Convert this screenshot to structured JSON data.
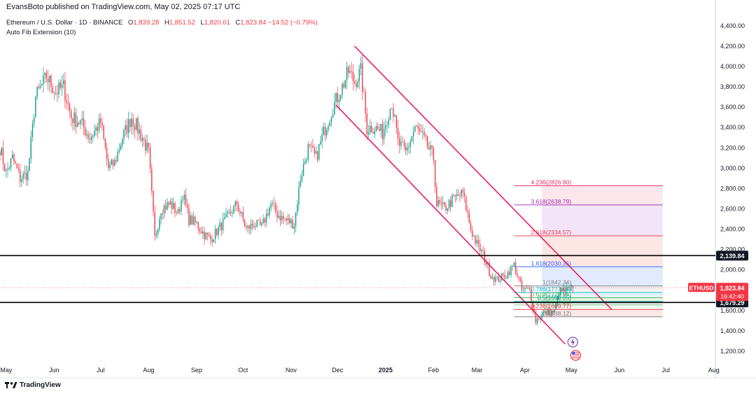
{
  "header": {
    "publish_line": "EvansBoto published on TradingView.com, May 02, 2025 07:17 UTC"
  },
  "legend": {
    "symbol": "Ethereum / U.S. Dollar · 1D · BINANCE",
    "open_label": "O",
    "open": "1,839.28",
    "high_label": "H",
    "high": "1,851.52",
    "low_label": "L",
    "low": "1,820.01",
    "close_label": "C",
    "close": "1,823.84",
    "change": "−14.52 (−0.79%)",
    "indicator": "Auto Fib Extension (10)"
  },
  "branding": {
    "logo_text": "TradingView",
    "logo_icon": "tradingview-logo-icon"
  },
  "colors": {
    "up": "#089981",
    "down": "#f23645",
    "channel": "#e91e63",
    "price_tag": "#f23645",
    "level_tag": "#131722"
  },
  "chart_data": {
    "type": "candlestick",
    "symbol": "ETHUSD",
    "timeframe": "1D",
    "y_ticks": [
      1200,
      1400,
      1600,
      1800,
      2000,
      2200,
      2400,
      2600,
      2800,
      3000,
      3200,
      3400,
      3600,
      3800,
      4000,
      4200,
      4400
    ],
    "y_tick_labels": [
      "1,200.00",
      "1,400.00",
      "1,600.00",
      "1,800.00",
      "2,000.00",
      "2,200.00",
      "2,400.00",
      "2,600.00",
      "2,800.00",
      "3,000.00",
      "3,200.00",
      "3,400.00",
      "3,600.00",
      "3,800.00",
      "4,000.00",
      "4,200.00",
      "4,400.00"
    ],
    "ylim": [
      1110,
      4530
    ],
    "x_labels": [
      {
        "label": "May",
        "date": "2024-05-01",
        "bold": false
      },
      {
        "label": "Jun",
        "date": "2024-06-01",
        "bold": false
      },
      {
        "label": "Jul",
        "date": "2024-07-01",
        "bold": false
      },
      {
        "label": "Aug",
        "date": "2024-08-01",
        "bold": false
      },
      {
        "label": "Sep",
        "date": "2024-09-01",
        "bold": false
      },
      {
        "label": "Oct",
        "date": "2024-10-01",
        "bold": false
      },
      {
        "label": "Nov",
        "date": "2024-11-01",
        "bold": false
      },
      {
        "label": "Dec",
        "date": "2024-12-01",
        "bold": false
      },
      {
        "label": "2025",
        "date": "2025-01-01",
        "bold": true
      },
      {
        "label": "Feb",
        "date": "2025-02-01",
        "bold": false
      },
      {
        "label": "Mar",
        "date": "2025-03-01",
        "bold": false
      },
      {
        "label": "Apr",
        "date": "2025-04-01",
        "bold": false
      },
      {
        "label": "May",
        "date": "2025-05-01",
        "bold": false
      },
      {
        "label": "Jun",
        "date": "2025-06-01",
        "bold": false
      },
      {
        "label": "Jul",
        "date": "2025-07-01",
        "bold": false
      },
      {
        "label": "Aug",
        "date": "2025-08-01",
        "bold": false
      }
    ],
    "xlim": [
      "2024-04-27",
      "2025-08-02"
    ],
    "price_path": [
      [
        "2024-04-27",
        3200
      ],
      [
        "2024-05-01",
        2950
      ],
      [
        "2024-05-05",
        3100
      ],
      [
        "2024-05-10",
        2900
      ],
      [
        "2024-05-15",
        2950
      ],
      [
        "2024-05-20",
        3700
      ],
      [
        "2024-05-27",
        3900
      ],
      [
        "2024-06-02",
        3750
      ],
      [
        "2024-06-07",
        3800
      ],
      [
        "2024-06-12",
        3500
      ],
      [
        "2024-06-18",
        3450
      ],
      [
        "2024-06-24",
        3300
      ],
      [
        "2024-07-01",
        3450
      ],
      [
        "2024-07-06",
        3000
      ],
      [
        "2024-07-10",
        3050
      ],
      [
        "2024-07-15",
        3300
      ],
      [
        "2024-07-21",
        3500
      ],
      [
        "2024-07-28",
        3300
      ],
      [
        "2024-08-01",
        3150
      ],
      [
        "2024-08-05",
        2300
      ],
      [
        "2024-08-09",
        2600
      ],
      [
        "2024-08-15",
        2650
      ],
      [
        "2024-08-20",
        2550
      ],
      [
        "2024-08-23",
        2750
      ],
      [
        "2024-08-27",
        2500
      ],
      [
        "2024-09-01",
        2450
      ],
      [
        "2024-09-06",
        2350
      ],
      [
        "2024-09-10",
        2300
      ],
      [
        "2024-09-15",
        2400
      ],
      [
        "2024-09-20",
        2500
      ],
      [
        "2024-09-27",
        2650
      ],
      [
        "2024-10-03",
        2400
      ],
      [
        "2024-10-08",
        2450
      ],
      [
        "2024-10-13",
        2420
      ],
      [
        "2024-10-19",
        2650
      ],
      [
        "2024-10-23",
        2550
      ],
      [
        "2024-10-27",
        2500
      ],
      [
        "2024-11-03",
        2450
      ],
      [
        "2024-11-07",
        2900
      ],
      [
        "2024-11-12",
        3200
      ],
      [
        "2024-11-17",
        3100
      ],
      [
        "2024-11-22",
        3350
      ],
      [
        "2024-11-28",
        3600
      ],
      [
        "2024-12-04",
        3800
      ],
      [
        "2024-12-08",
        3950
      ],
      [
        "2024-12-12",
        3850
      ],
      [
        "2024-12-16",
        3950
      ],
      [
        "2024-12-20",
        3400
      ],
      [
        "2024-12-25",
        3400
      ],
      [
        "2024-12-30",
        3350
      ],
      [
        "2025-01-05",
        3650
      ],
      [
        "2025-01-09",
        3250
      ],
      [
        "2025-01-14",
        3150
      ],
      [
        "2025-01-20",
        3400
      ],
      [
        "2025-01-25",
        3300
      ],
      [
        "2025-02-01",
        3100
      ],
      [
        "2025-02-03",
        2650
      ],
      [
        "2025-02-08",
        2600
      ],
      [
        "2025-02-14",
        2700
      ],
      [
        "2025-02-20",
        2750
      ],
      [
        "2025-02-25",
        2400
      ],
      [
        "2025-03-01",
        2250
      ],
      [
        "2025-03-05",
        2150
      ],
      [
        "2025-03-10",
        1950
      ],
      [
        "2025-03-14",
        1900
      ],
      [
        "2025-03-20",
        1950
      ],
      [
        "2025-03-25",
        2050
      ],
      [
        "2025-03-30",
        1800
      ],
      [
        "2025-04-04",
        1800
      ],
      [
        "2025-04-08",
        1500
      ],
      [
        "2025-04-12",
        1560
      ],
      [
        "2025-04-16",
        1580
      ],
      [
        "2025-04-20",
        1590
      ],
      [
        "2025-04-23",
        1780
      ],
      [
        "2025-04-28",
        1800
      ],
      [
        "2025-05-02",
        1824
      ]
    ],
    "horizontal_levels": [
      {
        "value": 2139.84,
        "label": "2,139.84"
      },
      {
        "value": 1679.29,
        "label": "1,679.29"
      }
    ],
    "current_price": {
      "symbol": "ETHUSD",
      "value": 1823.84,
      "label": "1,823.84",
      "countdown": "16:42:40"
    },
    "channel": {
      "upper": [
        [
          "2024-12-12",
          4200
        ],
        [
          "2025-05-27",
          1610
        ]
      ],
      "lower": [
        [
          "2024-11-30",
          3620
        ],
        [
          "2025-04-27",
          1270
        ]
      ]
    },
    "fib_extension": {
      "start": "2025-03-25",
      "zone_start": "2025-04-12",
      "end": "2025-06-29",
      "levels": [
        {
          "ratio": "4.236",
          "value": 2826.8,
          "text": "4.236(2826.80)",
          "color": "#e91e63",
          "fill": "#fde4ea"
        },
        {
          "ratio": "3.618",
          "value": 2638.79,
          "text": "3.618(2638.79)",
          "color": "#9c27b0",
          "fill": "#f0e2f6"
        },
        {
          "ratio": "2.618",
          "value": 2334.57,
          "text": "2.618(2334.57)",
          "color": "#f23645",
          "fill": "#fde3e1"
        },
        {
          "ratio": "1.618",
          "value": 2030.35,
          "text": "1.618(2030.35)",
          "color": "#2962ff",
          "fill": "#dfe9fd"
        },
        {
          "ratio": "1",
          "value": 1842.34,
          "text": "1(1842.34)",
          "color": "#787b86",
          "fill": "#f0f0f2"
        },
        {
          "ratio": "0.786",
          "value": 1777.04,
          "text": "0.786(1777.04)",
          "color": "#00bcd4",
          "fill": "#dff3f6"
        },
        {
          "ratio": "0.618",
          "value": 1725.94,
          "text": "0.618(1725.94)",
          "color": "#4caf50",
          "fill": "#e2f3e3"
        },
        {
          "ratio": "0.5",
          "value": 1690.05,
          "text": "0.5(1690.05)",
          "color": "#089981",
          "fill": "#dff1ee"
        },
        {
          "ratio": "0.382",
          "value": 1654.16,
          "text": "0.382(1654.16)",
          "color": "#81c784",
          "fill": "#eef7ee"
        },
        {
          "ratio": "0.236",
          "value": 1609.77,
          "text": "0.236(1609.77)",
          "color": "#f23645",
          "fill": "#fde6e6"
        },
        {
          "ratio": "0",
          "value": 1538.12,
          "text": "0(1538.12)",
          "color": "#787b86",
          "fill": null
        }
      ]
    },
    "event_icons": [
      {
        "date": "2025-05-01",
        "kind": "earnings-lightning-icon"
      },
      {
        "date": "2025-05-01",
        "kind": "us-flag-icon"
      }
    ]
  }
}
